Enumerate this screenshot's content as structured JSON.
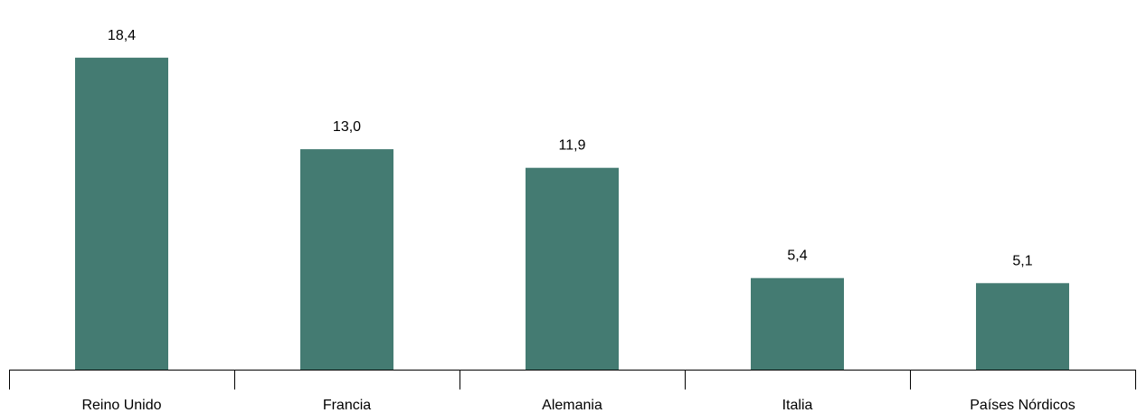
{
  "chart_data": {
    "type": "bar",
    "categories": [
      "Reino Unido",
      "Francia",
      "Alemania",
      "Italia",
      "Países Nórdicos"
    ],
    "values": [
      18.4,
      13.0,
      11.9,
      5.4,
      5.1
    ],
    "value_labels": [
      "18,4",
      "13,0",
      "11,9",
      "5,4",
      "5,1"
    ],
    "title": "",
    "xlabel": "",
    "ylabel": "",
    "ylim": [
      0,
      20.2
    ],
    "grid": false,
    "legend": "none",
    "bar_color": "#447b72"
  }
}
